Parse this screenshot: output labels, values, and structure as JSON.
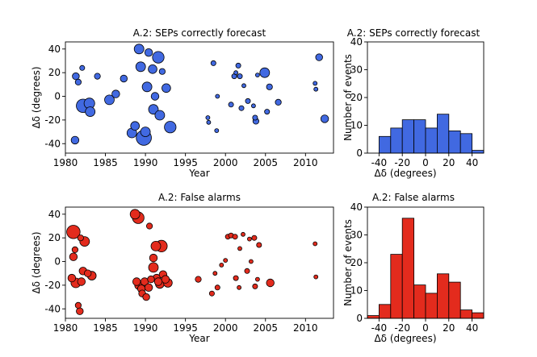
{
  "colors": {
    "blue": "#4169e1",
    "red": "#e32b1d",
    "edge": "#000000"
  },
  "chart_data": [
    {
      "id": "scatter_top",
      "type": "scatter",
      "title": "A.2: SEPs correctly forecast",
      "xlabel": "Year",
      "ylabel": "Δδ (degrees)",
      "xlim": [
        1980,
        2013.5
      ],
      "ylim": [
        -48,
        46
      ],
      "xticks": [
        1980,
        1985,
        1990,
        1995,
        2000,
        2005,
        2010
      ],
      "yticks": [
        -40,
        -20,
        0,
        20,
        40
      ],
      "color": "blue",
      "points": [
        {
          "x": 1981.2,
          "y": -37,
          "s": 3
        },
        {
          "x": 1981.3,
          "y": 17,
          "s": 2.5
        },
        {
          "x": 1981.6,
          "y": 12,
          "s": 2
        },
        {
          "x": 1982.1,
          "y": 24,
          "s": 1.5
        },
        {
          "x": 1982.2,
          "y": -8,
          "s": 6
        },
        {
          "x": 1983.0,
          "y": -6,
          "s": 4.5
        },
        {
          "x": 1983.1,
          "y": -13,
          "s": 4
        },
        {
          "x": 1984.0,
          "y": 17,
          "s": 2
        },
        {
          "x": 1985.5,
          "y": -3,
          "s": 4
        },
        {
          "x": 1986.3,
          "y": 2,
          "s": 3
        },
        {
          "x": 1987.3,
          "y": 15,
          "s": 2.5
        },
        {
          "x": 1988.3,
          "y": -31,
          "s": 4
        },
        {
          "x": 1988.7,
          "y": -25,
          "s": 3.5
        },
        {
          "x": 1989.2,
          "y": 40,
          "s": 4
        },
        {
          "x": 1989.4,
          "y": 25,
          "s": 4
        },
        {
          "x": 1989.8,
          "y": -35,
          "s": 7
        },
        {
          "x": 1990.0,
          "y": -30,
          "s": 4
        },
        {
          "x": 1990.2,
          "y": 8,
          "s": 4
        },
        {
          "x": 1990.4,
          "y": 37,
          "s": 3
        },
        {
          "x": 1990.9,
          "y": 23,
          "s": 3.5
        },
        {
          "x": 1991.0,
          "y": -11,
          "s": 4
        },
        {
          "x": 1991.2,
          "y": 0,
          "s": 3
        },
        {
          "x": 1991.6,
          "y": 33,
          "s": 5
        },
        {
          "x": 1991.8,
          "y": -16,
          "s": 4
        },
        {
          "x": 1992.1,
          "y": 21,
          "s": 2
        },
        {
          "x": 1992.6,
          "y": 7,
          "s": 3.5
        },
        {
          "x": 1993.1,
          "y": -26,
          "s": 5
        },
        {
          "x": 1997.8,
          "y": -18,
          "s": 1
        },
        {
          "x": 1997.9,
          "y": -22,
          "s": 1
        },
        {
          "x": 1998.5,
          "y": 28,
          "s": 1.5
        },
        {
          "x": 1998.9,
          "y": -29,
          "s": 1
        },
        {
          "x": 1999.0,
          "y": 0,
          "s": 1
        },
        {
          "x": 2000.7,
          "y": -7,
          "s": 1.5
        },
        {
          "x": 2001.1,
          "y": 17,
          "s": 1.5
        },
        {
          "x": 2001.3,
          "y": 20,
          "s": 1
        },
        {
          "x": 2001.6,
          "y": 26,
          "s": 1.5
        },
        {
          "x": 2001.8,
          "y": 17,
          "s": 1.5
        },
        {
          "x": 2002.0,
          "y": -10,
          "s": 1.5
        },
        {
          "x": 2002.3,
          "y": 9,
          "s": 1
        },
        {
          "x": 2002.8,
          "y": -4,
          "s": 1.5
        },
        {
          "x": 2003.5,
          "y": -8,
          "s": 1
        },
        {
          "x": 2003.7,
          "y": -18,
          "s": 1.5
        },
        {
          "x": 2003.8,
          "y": -21,
          "s": 2
        },
        {
          "x": 2004.0,
          "y": 18,
          "s": 1
        },
        {
          "x": 2004.9,
          "y": 20,
          "s": 4
        },
        {
          "x": 2005.2,
          "y": -13,
          "s": 1.5
        },
        {
          "x": 2005.5,
          "y": 8,
          "s": 2
        },
        {
          "x": 2006.6,
          "y": -5,
          "s": 2
        },
        {
          "x": 2011.2,
          "y": 11,
          "s": 1
        },
        {
          "x": 2011.3,
          "y": 6,
          "s": 1
        },
        {
          "x": 2011.7,
          "y": 33,
          "s": 2.5
        },
        {
          "x": 2012.4,
          "y": -19,
          "s": 3
        }
      ]
    },
    {
      "id": "hist_top",
      "type": "bar",
      "title": "A.2: SEPs correctly forecast",
      "xlabel": "Δδ (degrees)",
      "ylabel": "Number of events",
      "xlim": [
        -50,
        50
      ],
      "ylim": [
        0,
        40
      ],
      "xticks": [
        -40,
        -20,
        0,
        20,
        40
      ],
      "yticks": [
        0,
        10,
        20,
        30,
        40
      ],
      "color": "blue",
      "bin_edges": [
        -40,
        -30,
        -20,
        -10,
        0,
        10,
        20,
        30,
        40,
        50
      ],
      "values": [
        6,
        9,
        12,
        12,
        9,
        14,
        8,
        7,
        1
      ]
    },
    {
      "id": "scatter_bottom",
      "type": "scatter",
      "title": "A.2: False alarms",
      "xlabel": "Year",
      "ylabel": "Δδ (degrees)",
      "xlim": [
        1980,
        2013.5
      ],
      "ylim": [
        -48,
        46
      ],
      "xticks": [
        1980,
        1985,
        1990,
        1995,
        2000,
        2005,
        2010
      ],
      "yticks": [
        -40,
        -20,
        0,
        20,
        40
      ],
      "color": "red",
      "points": [
        {
          "x": 1981.0,
          "y": 25,
          "s": 6
        },
        {
          "x": 1981.2,
          "y": 10,
          "s": 2
        },
        {
          "x": 1981.0,
          "y": 4,
          "s": 3
        },
        {
          "x": 1980.8,
          "y": -14,
          "s": 3
        },
        {
          "x": 1981.3,
          "y": -18,
          "s": 4
        },
        {
          "x": 1981.6,
          "y": -37,
          "s": 2
        },
        {
          "x": 1981.8,
          "y": -42,
          "s": 2.5
        },
        {
          "x": 1981.9,
          "y": 20,
          "s": 2
        },
        {
          "x": 1982.0,
          "y": -17,
          "s": 3
        },
        {
          "x": 1982.2,
          "y": -8,
          "s": 3
        },
        {
          "x": 1982.4,
          "y": 17,
          "s": 4
        },
        {
          "x": 1982.8,
          "y": -10,
          "s": 2.5
        },
        {
          "x": 1983.3,
          "y": -12,
          "s": 3.5
        },
        {
          "x": 1988.7,
          "y": 40,
          "s": 4
        },
        {
          "x": 1989.1,
          "y": 37,
          "s": 5
        },
        {
          "x": 1988.9,
          "y": -17,
          "s": 3
        },
        {
          "x": 1989.2,
          "y": -20,
          "s": 3.5
        },
        {
          "x": 1989.5,
          "y": -23,
          "s": 3
        },
        {
          "x": 1989.6,
          "y": -27,
          "s": 2.5
        },
        {
          "x": 1989.9,
          "y": -17,
          "s": 3
        },
        {
          "x": 1990.1,
          "y": -30,
          "s": 2.5
        },
        {
          "x": 1990.4,
          "y": -22,
          "s": 3
        },
        {
          "x": 1990.5,
          "y": 30,
          "s": 2
        },
        {
          "x": 1990.7,
          "y": -15,
          "s": 2.5
        },
        {
          "x": 1991.0,
          "y": 3,
          "s": 3
        },
        {
          "x": 1991.0,
          "y": -5,
          "s": 4
        },
        {
          "x": 1991.3,
          "y": 13,
          "s": 4
        },
        {
          "x": 1991.4,
          "y": -14,
          "s": 3
        },
        {
          "x": 1991.6,
          "y": -17,
          "s": 3
        },
        {
          "x": 1991.8,
          "y": -19,
          "s": 3.5
        },
        {
          "x": 1992.0,
          "y": 13,
          "s": 5
        },
        {
          "x": 1992.2,
          "y": -11,
          "s": 3
        },
        {
          "x": 1992.5,
          "y": -15,
          "s": 3
        },
        {
          "x": 1992.8,
          "y": -18,
          "s": 3.5
        },
        {
          "x": 1996.6,
          "y": -15,
          "s": 2
        },
        {
          "x": 1998.3,
          "y": -27,
          "s": 1.5
        },
        {
          "x": 1998.7,
          "y": -10,
          "s": 1
        },
        {
          "x": 1999.0,
          "y": -22,
          "s": 1.5
        },
        {
          "x": 1999.5,
          "y": -3,
          "s": 1
        },
        {
          "x": 2000.0,
          "y": 1,
          "s": 1
        },
        {
          "x": 2000.3,
          "y": 21,
          "s": 1.5
        },
        {
          "x": 2000.7,
          "y": 22,
          "s": 1.5
        },
        {
          "x": 2001.2,
          "y": 21,
          "s": 1.5
        },
        {
          "x": 2001.3,
          "y": -14,
          "s": 1.5
        },
        {
          "x": 2001.7,
          "y": -22,
          "s": 1
        },
        {
          "x": 2001.8,
          "y": 11,
          "s": 1
        },
        {
          "x": 2002.2,
          "y": 23,
          "s": 1
        },
        {
          "x": 2002.7,
          "y": -8,
          "s": 1.5
        },
        {
          "x": 2003.0,
          "y": 19,
          "s": 1
        },
        {
          "x": 2003.2,
          "y": 0,
          "s": 1
        },
        {
          "x": 2003.6,
          "y": 20,
          "s": 1.5
        },
        {
          "x": 2003.7,
          "y": -21,
          "s": 1.5
        },
        {
          "x": 2004.0,
          "y": -15,
          "s": 1
        },
        {
          "x": 2004.2,
          "y": 14,
          "s": 1.5
        },
        {
          "x": 2005.6,
          "y": -18,
          "s": 3
        },
        {
          "x": 2011.2,
          "y": 15,
          "s": 1
        },
        {
          "x": 2011.3,
          "y": -13,
          "s": 1
        }
      ]
    },
    {
      "id": "hist_bottom",
      "type": "bar",
      "title": "A.2: False alarms",
      "xlabel": "Δδ (degrees)",
      "ylabel": "Number of events",
      "xlim": [
        -50,
        50
      ],
      "ylim": [
        0,
        40
      ],
      "xticks": [
        -40,
        -20,
        0,
        20,
        40
      ],
      "yticks": [
        0,
        10,
        20,
        30,
        40
      ],
      "color": "red",
      "bin_edges": [
        -50,
        -40,
        -30,
        -20,
        -10,
        0,
        10,
        20,
        30,
        40,
        50
      ],
      "values": [
        1,
        5,
        23,
        36,
        12,
        9,
        16,
        13,
        3,
        2
      ]
    }
  ]
}
